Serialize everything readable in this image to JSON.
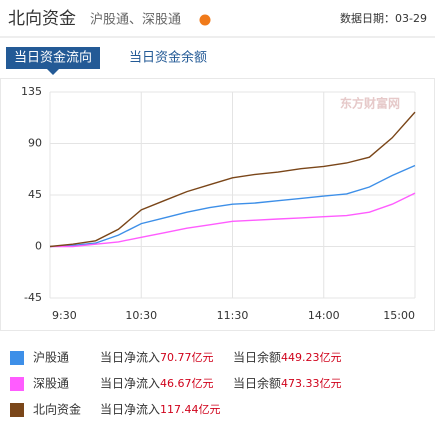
{
  "header": {
    "title": "北向资金",
    "subtitle": "沪股通、深股通",
    "date": "数据日期：03-29"
  },
  "tabs": [
    "当日资金流向",
    "当日资金余额"
  ],
  "watermark": "东方财富网",
  "chart_data": {
    "type": "line",
    "x": [
      "9:30",
      "9:45",
      "10:00",
      "10:15",
      "10:30",
      "10:45",
      "11:00",
      "11:15",
      "11:30",
      "13:15",
      "13:30",
      "13:45",
      "14:00",
      "14:15",
      "14:30",
      "14:45",
      "15:00"
    ],
    "series": [
      {
        "name": "沪股通",
        "color": "#3d8fe8",
        "values": [
          0,
          1,
          3,
          10,
          20,
          25,
          30,
          34,
          37,
          38,
          40,
          42,
          44,
          46,
          52,
          62,
          70.77
        ]
      },
      {
        "name": "深股通",
        "color": "#ff5cff",
        "values": [
          0,
          0,
          2,
          4,
          8,
          12,
          16,
          19,
          22,
          23,
          24,
          25,
          26,
          27,
          30,
          37,
          46.67
        ]
      },
      {
        "name": "北向资金",
        "color": "#7a4619",
        "values": [
          0,
          2,
          5,
          15,
          32,
          40,
          48,
          54,
          60,
          63,
          65,
          68,
          70,
          73,
          78,
          95,
          117.44
        ]
      }
    ],
    "xlim": [
      "9:30",
      "15:00"
    ],
    "xticks": [
      "9:30",
      "10:30",
      "11:30",
      "14:00",
      "15:00"
    ],
    "ylim": [
      -45,
      135
    ],
    "yticks": [
      135,
      90,
      45,
      0,
      -45
    ],
    "grid": true
  },
  "summary": [
    {
      "inflow_label": "当日净流入",
      "inflow": "70.77亿元",
      "balance_label": "当日余额",
      "balance": "449.23亿元"
    },
    {
      "inflow_label": "当日净流入",
      "inflow": "46.67亿元",
      "balance_label": "当日余额",
      "balance": "473.33亿元"
    },
    {
      "inflow_label": "当日净流入",
      "inflow": "117.44亿元"
    }
  ]
}
